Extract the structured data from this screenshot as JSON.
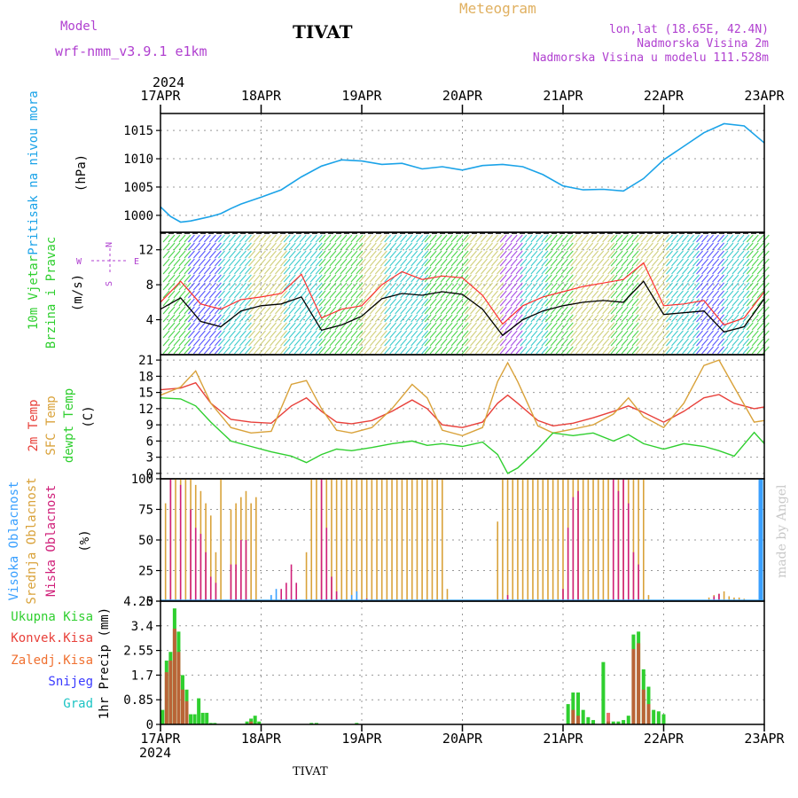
{
  "header": {
    "model_label": "Model",
    "model_name": "wrf-nmm_v3.9.1 e1km",
    "station": "TIVAT",
    "chart_title": "Meteogram",
    "lonlat": "lon,lat (18.65E, 42.4N)",
    "elevation": "Nadmorska Visina 2m",
    "model_elevation": "Nadmorska Visina u modelu 111.528m",
    "footer_station": "TIVAT",
    "credit": "made by Angel"
  },
  "colors": {
    "pressure": "#1ba3e8",
    "wind_green": "#2fcf2f",
    "wind_yellow": "#c8c864",
    "wind_cyan": "#1cc4c4",
    "wind_blue": "#3a3aff",
    "wind_purple": "#9a30e0",
    "wind_red": "#ff3030",
    "temp2m": "#e8403a",
    "sfc_temp": "#d9a23a",
    "dewpt": "#2fcf2f",
    "cloud_high": "#3aa0ff",
    "cloud_mid": "#d9a23a",
    "cloud_low": "#d0207a",
    "rain_total": "#2fcf2f",
    "rain_conv": "#e8403a",
    "frozen": "#f07030",
    "snow": "#3a3aff",
    "hail": "#1cc4c4",
    "label_purple": "#b040d0",
    "title_orange": "#e0b060"
  },
  "time_axis": {
    "year": "2024",
    "labels": [
      "17APR",
      "18APR",
      "19APR",
      "20APR",
      "21APR",
      "22APR",
      "23APR"
    ]
  },
  "chart_data": [
    {
      "type": "line",
      "panel": "pressure",
      "ylabel_title": "Pritisak na nivou mora",
      "ylabel_unit": "(hPa)",
      "yticks": [
        "1000",
        "1005",
        "1010",
        "1015"
      ],
      "ylim": [
        997,
        1018
      ],
      "grid": true,
      "x": [
        0,
        0.1,
        0.2,
        0.3,
        0.4,
        0.5,
        0.6,
        0.7,
        0.8,
        1.0,
        1.2,
        1.4,
        1.6,
        1.8,
        2.0,
        2.2,
        2.4,
        2.6,
        2.8,
        3.0,
        3.2,
        3.4,
        3.6,
        3.8,
        4.0,
        4.2,
        4.4,
        4.6,
        4.8,
        5.0,
        5.2,
        5.4,
        5.6,
        5.8,
        6.0
      ],
      "series": [
        {
          "values": [
            1001.5,
            999.8,
            998.8,
            999.0,
            999.4,
            999.8,
            1000.3,
            1001.2,
            1002.0,
            1003.2,
            1004.5,
            1006.8,
            1008.7,
            1009.8,
            1009.6,
            1009.0,
            1009.2,
            1008.2,
            1008.6,
            1008.0,
            1008.8,
            1009.0,
            1008.6,
            1007.2,
            1005.2,
            1004.5,
            1004.6,
            1004.3,
            1006.5,
            1009.8,
            1012.2,
            1014.6,
            1016.2,
            1015.8,
            1012.8
          ]
        }
      ]
    },
    {
      "type": "line",
      "panel": "wind",
      "ylabel_title": "10m Vjetar Brzina i Pravac",
      "ylabel_unit": "(m/s)",
      "compass": [
        "N",
        "E",
        "S",
        "W"
      ],
      "yticks": [
        "4",
        "8",
        "12"
      ],
      "ylim": [
        0,
        14
      ],
      "grid": true,
      "x": [
        0,
        0.2,
        0.4,
        0.6,
        0.8,
        1.0,
        1.2,
        1.4,
        1.6,
        1.8,
        2.0,
        2.2,
        2.4,
        2.6,
        2.8,
        3.0,
        3.2,
        3.4,
        3.6,
        3.8,
        4.0,
        4.2,
        4.4,
        4.6,
        4.8,
        5.0,
        5.2,
        5.4,
        5.6,
        5.8,
        6.0
      ],
      "series": [
        {
          "name": "speed",
          "values": [
            5.2,
            6.5,
            3.8,
            3.2,
            5.0,
            5.6,
            5.8,
            6.6,
            2.8,
            3.4,
            4.4,
            6.4,
            7.0,
            6.8,
            7.2,
            6.9,
            5.2,
            2.2,
            4.0,
            5.0,
            5.6,
            6.0,
            6.2,
            6.0,
            8.4,
            4.6,
            4.8,
            5.0,
            2.6,
            3.2,
            6.4
          ]
        },
        {
          "name": "gust",
          "values": [
            6.0,
            8.4,
            5.8,
            5.2,
            6.3,
            6.6,
            7.0,
            9.2,
            4.2,
            5.2,
            5.6,
            8.0,
            9.5,
            8.6,
            9.0,
            8.8,
            6.8,
            3.5,
            5.6,
            6.6,
            7.2,
            7.8,
            8.2,
            8.6,
            10.5,
            5.6,
            5.8,
            6.2,
            3.4,
            4.2,
            7.2
          ]
        }
      ]
    },
    {
      "type": "line",
      "panel": "temperature",
      "ylabel_titles": [
        "2m Temp",
        "SFC Temp",
        "dewpt Temp"
      ],
      "ylabel_unit": "(C)",
      "yticks": [
        "0",
        "3",
        "6",
        "9",
        "12",
        "15",
        "18",
        "21"
      ],
      "ylim": [
        -1,
        22
      ],
      "grid": true,
      "x": [
        0,
        0.2,
        0.35,
        0.5,
        0.7,
        0.9,
        1.1,
        1.3,
        1.45,
        1.6,
        1.75,
        1.9,
        2.1,
        2.3,
        2.5,
        2.65,
        2.8,
        3.0,
        3.2,
        3.35,
        3.45,
        3.55,
        3.75,
        3.9,
        4.1,
        4.3,
        4.5,
        4.65,
        4.8,
        5.0,
        5.2,
        5.4,
        5.55,
        5.7,
        5.9,
        6.0
      ],
      "series": [
        {
          "name": "2m Temp",
          "values": [
            15.5,
            15.8,
            16.8,
            13.0,
            10.0,
            9.5,
            9.3,
            12.5,
            14.0,
            11.5,
            9.5,
            9.2,
            9.8,
            11.5,
            13.6,
            12.0,
            9.0,
            8.5,
            9.5,
            13.0,
            14.5,
            13.0,
            9.8,
            8.8,
            9.3,
            10.3,
            11.5,
            12.5,
            11.3,
            9.5,
            11.5,
            14.0,
            14.6,
            13.0,
            12.0,
            12.3
          ]
        },
        {
          "name": "SFC Temp",
          "values": [
            14.5,
            16.0,
            19.0,
            13.0,
            8.5,
            7.5,
            7.8,
            16.5,
            17.2,
            12.0,
            8.0,
            7.5,
            8.5,
            12.0,
            16.5,
            14.0,
            8.0,
            7.0,
            8.5,
            17.0,
            20.5,
            17.0,
            8.8,
            7.5,
            8.2,
            9.0,
            11.0,
            14.0,
            10.5,
            8.5,
            13.0,
            20.0,
            21.0,
            16.0,
            9.5,
            9.8
          ]
        },
        {
          "name": "dewpt Temp",
          "values": [
            14.0,
            13.8,
            12.5,
            9.5,
            6.0,
            5.0,
            4.0,
            3.2,
            2.0,
            3.5,
            4.5,
            4.2,
            4.8,
            5.5,
            6.0,
            5.2,
            5.5,
            5.0,
            5.8,
            3.5,
            0.0,
            1.0,
            4.5,
            7.5,
            7.0,
            7.5,
            6.0,
            7.2,
            5.5,
            4.5,
            5.5,
            5.0,
            4.2,
            3.2,
            7.6,
            5.5
          ]
        }
      ]
    },
    {
      "type": "bar",
      "panel": "clouds",
      "ylabel_titles": [
        "Visoka Oblacnost",
        "Srednja Oblacnost",
        "Niska Oblacnost"
      ],
      "ylabel_unit": "(%)",
      "yticks": [
        "0",
        "25",
        "50",
        "75",
        "100"
      ],
      "ylim": [
        0,
        100
      ],
      "grid": true,
      "series": [
        {
          "name": "Srednja Oblacnost",
          "x": [
            0.05,
            0.1,
            0.15,
            0.2,
            0.25,
            0.3,
            0.35,
            0.4,
            0.45,
            0.5,
            0.55,
            0.6,
            0.7,
            0.75,
            0.8,
            0.85,
            0.9,
            0.95,
            1.45,
            1.5,
            1.55,
            1.6,
            1.65,
            1.7,
            1.75,
            1.8,
            1.85,
            1.9,
            1.95,
            2.0,
            2.05,
            2.1,
            2.15,
            2.2,
            2.25,
            2.3,
            2.35,
            2.4,
            2.45,
            2.5,
            2.55,
            2.6,
            2.65,
            2.7,
            2.75,
            2.8,
            2.85,
            3.35,
            3.4,
            3.45,
            3.5,
            3.55,
            3.6,
            3.65,
            3.7,
            3.75,
            3.8,
            3.85,
            3.9,
            3.95,
            4.0,
            4.05,
            4.1,
            4.15,
            4.2,
            4.25,
            4.3,
            4.35,
            4.4,
            4.45,
            4.5,
            4.55,
            4.6,
            4.65,
            4.7,
            4.75,
            4.8,
            4.85,
            5.45,
            5.5,
            5.55,
            5.6,
            5.65,
            5.7,
            5.75,
            5.8
          ],
          "values": [
            80,
            100,
            100,
            100,
            100,
            100,
            95,
            90,
            80,
            70,
            40,
            100,
            75,
            80,
            85,
            90,
            80,
            85,
            40,
            100,
            100,
            100,
            100,
            100,
            100,
            100,
            100,
            100,
            100,
            100,
            100,
            100,
            100,
            100,
            100,
            100,
            100,
            100,
            100,
            100,
            100,
            100,
            100,
            100,
            100,
            100,
            10,
            65,
            100,
            100,
            100,
            100,
            100,
            100,
            100,
            100,
            100,
            100,
            100,
            100,
            100,
            100,
            100,
            100,
            100,
            100,
            100,
            100,
            100,
            100,
            100,
            100,
            100,
            100,
            100,
            100,
            100,
            5,
            3,
            5,
            6,
            8,
            4,
            3,
            3,
            2
          ]
        },
        {
          "name": "Niska Oblacnost",
          "x": [
            0.1,
            0.2,
            0.3,
            0.35,
            0.4,
            0.45,
            0.5,
            0.55,
            0.7,
            0.75,
            0.8,
            0.85,
            1.2,
            1.25,
            1.3,
            1.35,
            1.6,
            1.65,
            1.7,
            1.75,
            2.05,
            3.45,
            4.0,
            4.05,
            4.1,
            4.15,
            4.5,
            4.55,
            4.6,
            4.65,
            4.7,
            4.75,
            5.5,
            5.55
          ],
          "values": [
            100,
            95,
            75,
            60,
            55,
            40,
            20,
            15,
            30,
            30,
            50,
            50,
            10,
            15,
            30,
            15,
            100,
            60,
            20,
            8,
            2,
            5,
            10,
            60,
            85,
            90,
            100,
            90,
            100,
            80,
            40,
            30,
            4,
            6
          ]
        },
        {
          "name": "Visoka Oblacnost",
          "x": [
            1.1,
            1.15,
            1.9,
            1.95,
            5.95,
            5.96,
            5.97,
            5.98
          ],
          "values": [
            5,
            10,
            5,
            8,
            100,
            100,
            100,
            100
          ]
        }
      ]
    },
    {
      "type": "bar",
      "panel": "precip",
      "ylabel_titles": [
        "Ukupna Kisa",
        "Konvek.Kisa",
        "Zaledj.Kisa",
        "Snijeg",
        "Grad"
      ],
      "ylabel_unit": "1hr Precip (mm)",
      "yticks": [
        "0",
        "0.85",
        "1.7",
        "2.55",
        "3.4",
        "4.25"
      ],
      "ylim": [
        0,
        4.25
      ],
      "grid": true,
      "series": [
        {
          "name": "Ukupna Kisa",
          "x": [
            0.02,
            0.06,
            0.1,
            0.14,
            0.18,
            0.22,
            0.26,
            0.3,
            0.34,
            0.38,
            0.42,
            0.46,
            0.5,
            0.54,
            0.86,
            0.9,
            0.94,
            0.98,
            1.5,
            1.55,
            1.95,
            4.05,
            4.1,
            4.15,
            4.2,
            4.25,
            4.3,
            4.4,
            4.45,
            4.5,
            4.55,
            4.6,
            4.65,
            4.7,
            4.75,
            4.8,
            4.85,
            4.9,
            4.95,
            5.0
          ],
          "values": [
            0.5,
            2.2,
            2.5,
            4.0,
            3.2,
            1.7,
            1.2,
            0.35,
            0.35,
            0.9,
            0.4,
            0.4,
            0.05,
            0.05,
            0.1,
            0.2,
            0.3,
            0.1,
            0.05,
            0.05,
            0.05,
            0.7,
            1.1,
            1.1,
            0.5,
            0.25,
            0.15,
            2.15,
            0.1,
            0.1,
            0.1,
            0.15,
            0.3,
            3.1,
            3.2,
            1.9,
            1.3,
            0.5,
            0.45,
            0.35
          ]
        },
        {
          "name": "Konvek.Kisa",
          "x": [
            0.06,
            0.1,
            0.14,
            0.18,
            0.22,
            0.26,
            0.9,
            4.1,
            4.15,
            4.45,
            4.7,
            4.75,
            4.8,
            4.85
          ],
          "values": [
            1.8,
            2.2,
            3.3,
            2.5,
            1.2,
            0.8,
            0.1,
            0.5,
            0.3,
            0.4,
            2.6,
            2.8,
            1.2,
            0.7
          ]
        }
      ]
    }
  ]
}
